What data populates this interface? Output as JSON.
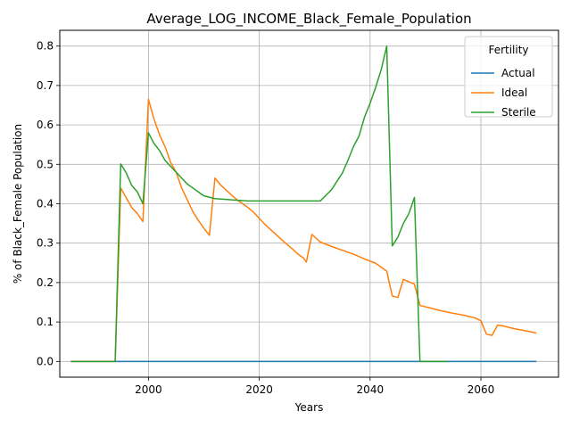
{
  "chart_data": {
    "type": "line",
    "title": "Average_LOG_INCOME_Black_Female_Population",
    "xlabel": "Years",
    "ylabel": "% of Black_Female Population",
    "xlim": [
      1984,
      2074
    ],
    "ylim": [
      -0.04,
      0.84
    ],
    "xticks": [
      2000,
      2020,
      2040,
      2060
    ],
    "yticks": [
      0.0,
      0.1,
      0.2,
      0.3,
      0.4,
      0.5,
      0.6,
      0.7,
      0.8
    ],
    "grid": true,
    "legend": {
      "title": "Fertility",
      "position": "top-right"
    },
    "series": [
      {
        "name": "Actual",
        "color": "#1f77b4",
        "points": [
          [
            1986,
            0.0
          ],
          [
            2070,
            0.0
          ]
        ]
      },
      {
        "name": "Ideal",
        "color": "#ff7f0e",
        "points": [
          [
            1986,
            0.0
          ],
          [
            1994,
            0.0
          ],
          [
            1995,
            0.44
          ],
          [
            1996,
            0.415
          ],
          [
            1997,
            0.39
          ],
          [
            1998,
            0.375
          ],
          [
            1999,
            0.355
          ],
          [
            2000,
            0.665
          ],
          [
            2001,
            0.615
          ],
          [
            2002,
            0.575
          ],
          [
            2003,
            0.545
          ],
          [
            2004,
            0.505
          ],
          [
            2005,
            0.48
          ],
          [
            2006,
            0.44
          ],
          [
            2007,
            0.41
          ],
          [
            2008,
            0.38
          ],
          [
            2009,
            0.358
          ],
          [
            2010,
            0.338
          ],
          [
            2011,
            0.32
          ],
          [
            2012,
            0.465
          ],
          [
            2013,
            0.448
          ],
          [
            2014,
            0.435
          ],
          [
            2015,
            0.422
          ],
          [
            2016,
            0.41
          ],
          [
            2017,
            0.4
          ],
          [
            2018,
            0.39
          ],
          [
            2019,
            0.378
          ],
          [
            2020,
            0.363
          ],
          [
            2021,
            0.348
          ],
          [
            2022,
            0.335
          ],
          [
            2023,
            0.322
          ],
          [
            2024,
            0.309
          ],
          [
            2025,
            0.297
          ],
          [
            2026,
            0.285
          ],
          [
            2027,
            0.272
          ],
          [
            2028,
            0.262
          ],
          [
            2028.5,
            0.252
          ],
          [
            2029.5,
            0.322
          ],
          [
            2031,
            0.303
          ],
          [
            2033,
            0.292
          ],
          [
            2035,
            0.282
          ],
          [
            2037,
            0.272
          ],
          [
            2039,
            0.26
          ],
          [
            2041,
            0.249
          ],
          [
            2043,
            0.229
          ],
          [
            2044,
            0.166
          ],
          [
            2045,
            0.162
          ],
          [
            2046,
            0.208
          ],
          [
            2048,
            0.196
          ],
          [
            2049,
            0.142
          ],
          [
            2051,
            0.135
          ],
          [
            2053,
            0.128
          ],
          [
            2055,
            0.122
          ],
          [
            2057,
            0.117
          ],
          [
            2059,
            0.11
          ],
          [
            2060,
            0.103
          ],
          [
            2061,
            0.069
          ],
          [
            2062,
            0.066
          ],
          [
            2063,
            0.092
          ],
          [
            2064,
            0.09
          ],
          [
            2066,
            0.083
          ],
          [
            2068,
            0.078
          ],
          [
            2070,
            0.072
          ]
        ]
      },
      {
        "name": "Sterile",
        "color": "#2ca02c",
        "points": [
          [
            1986,
            0.0
          ],
          [
            1994,
            0.0
          ],
          [
            1995,
            0.501
          ],
          [
            1996,
            0.478
          ],
          [
            1997,
            0.446
          ],
          [
            1998,
            0.43
          ],
          [
            1999,
            0.4
          ],
          [
            2000,
            0.58
          ],
          [
            2001,
            0.553
          ],
          [
            2002,
            0.535
          ],
          [
            2003,
            0.51
          ],
          [
            2004,
            0.495
          ],
          [
            2005,
            0.48
          ],
          [
            2006,
            0.465
          ],
          [
            2007,
            0.45
          ],
          [
            2008,
            0.44
          ],
          [
            2009,
            0.43
          ],
          [
            2010,
            0.42
          ],
          [
            2012,
            0.413
          ],
          [
            2015,
            0.41
          ],
          [
            2018,
            0.407
          ],
          [
            2020,
            0.407
          ],
          [
            2025,
            0.407
          ],
          [
            2031,
            0.407
          ],
          [
            2033,
            0.435
          ],
          [
            2035,
            0.478
          ],
          [
            2036,
            0.51
          ],
          [
            2037,
            0.545
          ],
          [
            2038,
            0.572
          ],
          [
            2039,
            0.62
          ],
          [
            2040,
            0.655
          ],
          [
            2041,
            0.695
          ],
          [
            2042,
            0.74
          ],
          [
            2043,
            0.8
          ],
          [
            2044,
            0.293
          ],
          [
            2045,
            0.315
          ],
          [
            2046,
            0.35
          ],
          [
            2047,
            0.375
          ],
          [
            2048,
            0.416
          ],
          [
            2049,
            0.0
          ],
          [
            2054,
            0.0
          ]
        ]
      }
    ]
  }
}
